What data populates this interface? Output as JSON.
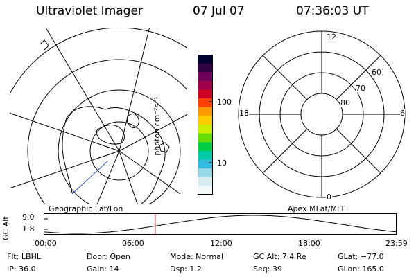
{
  "header": {
    "title": "Ultraviolet Imager",
    "date": "07 Jul 07",
    "time": "07:36:03 UT"
  },
  "left_map": {
    "label": "Geographic Lat/Lon"
  },
  "right_map": {
    "label": "Apex MLat/MLT",
    "mlt_labels": {
      "top": "12",
      "left": "18",
      "right": "6",
      "bottom": "0"
    },
    "lat_labels": [
      "60",
      "70",
      "80"
    ]
  },
  "colorbar": {
    "unit_label": "photon cm⁻²s⁻¹",
    "tick_labels": [
      "100",
      "10"
    ],
    "colors": [
      "#000033",
      "#300040",
      "#70005a",
      "#a0004a",
      "#d00020",
      "#ff4000",
      "#ff9900",
      "#ffcc00",
      "#ccee00",
      "#66dd00",
      "#00cc44",
      "#00ccaa",
      "#33bbdd",
      "#99d8e8",
      "#d8ecf0",
      "#f4f8f8"
    ]
  },
  "altitude_plot": {
    "ylabel": "GC Alt",
    "ytick_labels": [
      "9.0",
      "1.8"
    ],
    "xtick_labels": [
      "00:00",
      "06:00",
      "12:00",
      "18:00",
      "23:59"
    ],
    "current_marker_hours": 7.6
  },
  "info": {
    "filter": "Flt: LBHL",
    "door": "Door: Open",
    "mode": "Mode: Normal",
    "gc_alt": "GC Alt: 7.4 Re",
    "glat": "GLat: −77.0",
    "ip": "IP: 36.0",
    "gain": "Gain: 14",
    "dsp": "Dsp:    1.2",
    "seq": "Seq: 39",
    "glon": "GLon: 165.0"
  },
  "colors": {
    "marker": "#cc0000",
    "track": "#3355bb"
  }
}
